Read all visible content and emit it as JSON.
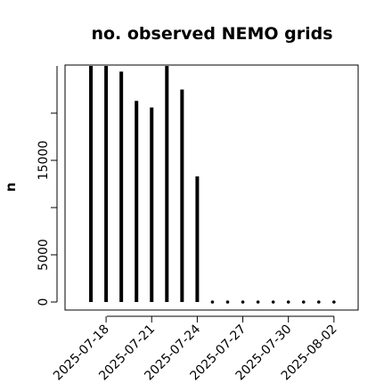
{
  "chart_data": {
    "type": "bar",
    "title": "no. observed NEMO grids",
    "xlabel": "",
    "ylabel": "n",
    "ylim": [
      0,
      25000
    ],
    "yticks": [
      0,
      5000,
      10000,
      15000,
      20000
    ],
    "ytick_labels": [
      "0",
      "5000",
      "",
      "15000",
      ""
    ],
    "x": [
      "2025-07-16",
      "2025-07-17",
      "2025-07-18",
      "2025-07-19",
      "2025-07-20",
      "2025-07-21",
      "2025-07-22",
      "2025-07-23",
      "2025-07-24",
      "2025-07-25",
      "2025-07-26",
      "2025-07-27",
      "2025-07-28",
      "2025-07-29",
      "2025-07-30",
      "2025-07-31",
      "2025-08-01",
      "2025-08-02"
    ],
    "values": [
      0,
      25000,
      25000,
      24400,
      21300,
      20600,
      25000,
      22500,
      13300,
      0,
      0,
      0,
      0,
      0,
      0,
      0,
      0,
      0
    ],
    "xtick_labels": [
      "2025-07-18",
      "2025-07-21",
      "2025-07-24",
      "2025-07-27",
      "2025-07-30",
      "2025-08-02"
    ],
    "grid": false,
    "legend": "none"
  }
}
